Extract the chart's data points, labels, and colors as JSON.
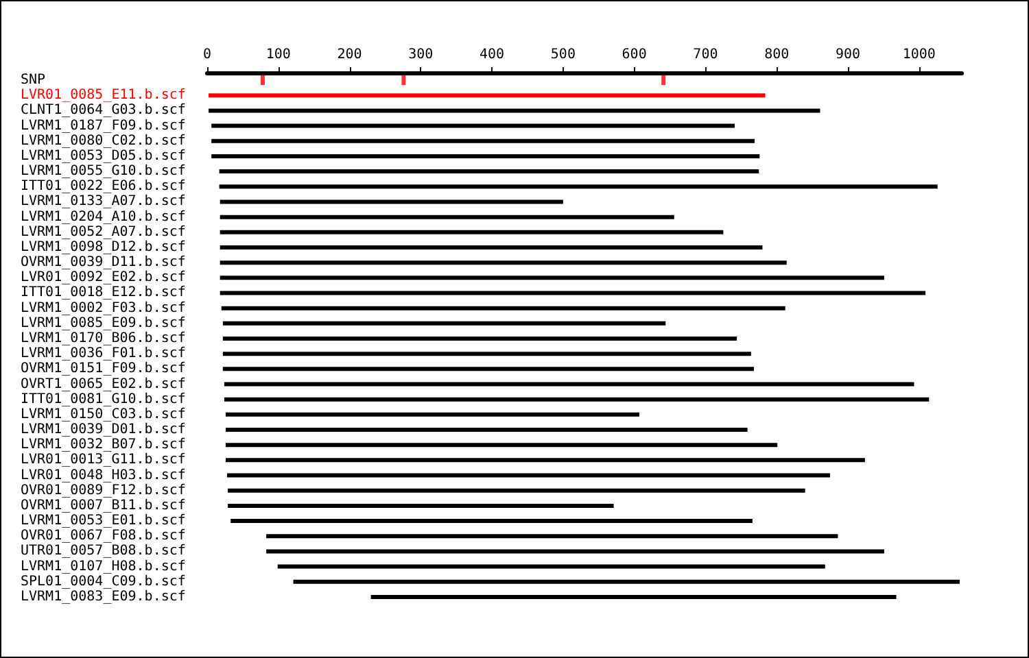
{
  "chart_data": {
    "type": "bar",
    "orientation": "horizontal",
    "categories": [
      "SNP",
      "LVR01_0085_E11.b.scf",
      "CLNT1_0064_G03.b.scf",
      "LVRM1_0187_F09.b.scf",
      "LVRM1_0080_C02.b.scf",
      "LVRM1_0053_D05.b.scf",
      "LVRM1_0055_G10.b.scf",
      "ITT01_0022_E06.b.scf",
      "LVRM1_0133_A07.b.scf",
      "LVRM1_0204_A10.b.scf",
      "LVRM1_0052_A07.b.scf",
      "LVRM1_0098_D12.b.scf",
      "OVRM1_0039_D11.b.scf",
      "LVR01_0092_E02.b.scf",
      "ITT01_0018_E12.b.scf",
      "LVRM1_0002_F03.b.scf",
      "LVRM1_0085_E09.b.scf",
      "LVRM1_0170_B06.b.scf",
      "LVRM1_0036_F01.b.scf",
      "OVRM1_0151_F09.b.scf",
      "OVRT1_0065_E02.b.scf",
      "ITT01_0081_G10.b.scf",
      "LVRM1_0150_C03.b.scf",
      "LVRM1_0039_D01.b.scf",
      "LVRM1_0032_B07.b.scf",
      "LVR01_0013_G11.b.scf",
      "LVR01_0048_H03.b.scf",
      "OVR01_0089_F12.b.scf",
      "OVRM1_0007_B11.b.scf",
      "LVRM1_0053_E01.b.scf",
      "OVR01_0067_F08.b.scf",
      "UTR01_0057_B08.b.scf",
      "LVRM1_0107_H08.b.scf",
      "SPL01_0004_C09.b.scf",
      "LVRM1_0083_E09.b.scf"
    ],
    "xlim": [
      0,
      1060
    ],
    "xticks": [
      0,
      100,
      200,
      300,
      400,
      500,
      600,
      700,
      800,
      900,
      1000
    ],
    "grid": false,
    "series": [
      {
        "base": [
          null,
          2,
          2,
          6,
          6,
          6,
          17,
          17,
          18,
          18,
          18,
          18,
          18,
          18,
          18,
          20,
          22,
          22,
          22,
          22,
          24,
          24,
          26,
          26,
          26,
          26,
          28,
          29,
          29,
          33,
          83,
          83,
          99,
          121,
          230
        ],
        "values": [
          null,
          782,
          859,
          735,
          763,
          770,
          758,
          1009,
          482,
          638,
          707,
          762,
          796,
          933,
          991,
          792,
          622,
          722,
          742,
          746,
          969,
          990,
          581,
          733,
          775,
          898,
          847,
          811,
          542,
          733,
          803,
          868,
          769,
          936,
          738
        ],
        "colors": [
          "#000000",
          "#ff0000",
          "#000000",
          "#000000",
          "#000000",
          "#000000",
          "#000000",
          "#000000",
          "#000000",
          "#000000",
          "#000000",
          "#000000",
          "#000000",
          "#000000",
          "#000000",
          "#000000",
          "#000000",
          "#000000",
          "#000000",
          "#000000",
          "#000000",
          "#000000",
          "#000000",
          "#000000",
          "#000000",
          "#000000",
          "#000000",
          "#000000",
          "#000000",
          "#000000",
          "#000000",
          "#000000",
          "#000000",
          "#000000",
          "#000000"
        ]
      },
      {
        "type": "scatter",
        "x": [
          "SNP",
          "SNP",
          "SNP"
        ],
        "values": [
          78,
          276,
          641
        ],
        "color": "#ff0000",
        "marker": "square"
      }
    ]
  }
}
